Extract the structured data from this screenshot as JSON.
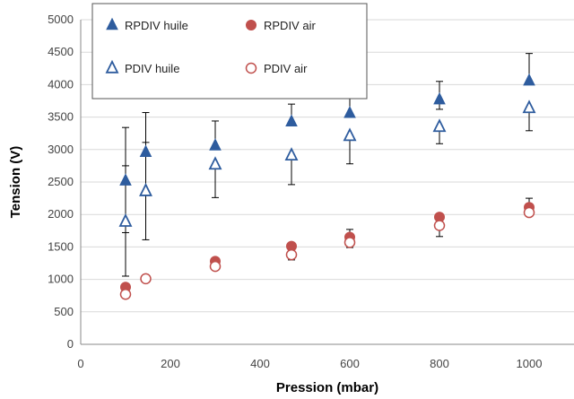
{
  "chart_data": {
    "type": "scatter",
    "xlabel": "Pression (mbar)",
    "ylabel": "Tension (V)",
    "xlim": [
      0,
      1100
    ],
    "ylim": [
      0,
      5000
    ],
    "xticks": [
      "0",
      "200",
      "400",
      "600",
      "800",
      "1000"
    ],
    "yticks": [
      "0",
      "500",
      "1000",
      "1500",
      "2000",
      "2500",
      "3000",
      "3500",
      "4000",
      "4500",
      "5000"
    ],
    "grid": "horizontal",
    "legend_position": "top-left",
    "series": [
      {
        "name": "RPDIV huile",
        "marker": "triangle-filled",
        "color": "#2E5C9E",
        "points": [
          {
            "x": 100,
            "y": 2520,
            "err_low": 800,
            "err_high": 820
          },
          {
            "x": 145,
            "y": 2960,
            "err_low": 1350,
            "err_high": 610
          },
          {
            "x": 300,
            "y": 3060,
            "err_low": 0,
            "err_high": 380
          },
          {
            "x": 470,
            "y": 3430,
            "err_low": 0,
            "err_high": 270
          },
          {
            "x": 600,
            "y": 3560,
            "err_low": 0,
            "err_high": 250
          },
          {
            "x": 800,
            "y": 3770,
            "err_low": 150,
            "err_high": 280
          },
          {
            "x": 1000,
            "y": 4060,
            "err_low": 0,
            "err_high": 420
          }
        ]
      },
      {
        "name": "RPDIV air",
        "marker": "circle-filled",
        "color": "#C0504D",
        "points": [
          {
            "x": 100,
            "y": 880
          },
          {
            "x": 145,
            "y": 1010
          },
          {
            "x": 300,
            "y": 1280
          },
          {
            "x": 470,
            "y": 1510
          },
          {
            "x": 600,
            "y": 1650,
            "err_low": 0,
            "err_high": 120
          },
          {
            "x": 800,
            "y": 1960
          },
          {
            "x": 1000,
            "y": 2110,
            "err_low": 0,
            "err_high": 140
          }
        ]
      },
      {
        "name": "PDIV huile",
        "marker": "triangle-open",
        "color": "#2E5C9E",
        "points": [
          {
            "x": 100,
            "y": 1890,
            "err_low": 840,
            "err_high": 860
          },
          {
            "x": 145,
            "y": 2360,
            "err_low": 0,
            "err_high": 750
          },
          {
            "x": 300,
            "y": 2770,
            "err_low": 510,
            "err_high": 0
          },
          {
            "x": 470,
            "y": 2910,
            "err_low": 450,
            "err_high": 0
          },
          {
            "x": 600,
            "y": 3210,
            "err_low": 430,
            "err_high": 0
          },
          {
            "x": 800,
            "y": 3350,
            "err_low": 260,
            "err_high": 0
          },
          {
            "x": 1000,
            "y": 3640,
            "err_low": 350,
            "err_high": 0
          }
        ]
      },
      {
        "name": "PDIV air",
        "marker": "circle-open",
        "color": "#C0504D",
        "points": [
          {
            "x": 100,
            "y": 770,
            "err_low": 60,
            "err_high": 60
          },
          {
            "x": 145,
            "y": 1010
          },
          {
            "x": 300,
            "y": 1200,
            "err_low": 60,
            "err_high": 60
          },
          {
            "x": 470,
            "y": 1380,
            "err_low": 80,
            "err_high": 80
          },
          {
            "x": 600,
            "y": 1570,
            "err_low": 80,
            "err_high": 0
          },
          {
            "x": 800,
            "y": 1830,
            "err_low": 170,
            "err_high": 0
          },
          {
            "x": 1000,
            "y": 2030,
            "err_low": 50,
            "err_high": 0
          }
        ]
      }
    ]
  }
}
